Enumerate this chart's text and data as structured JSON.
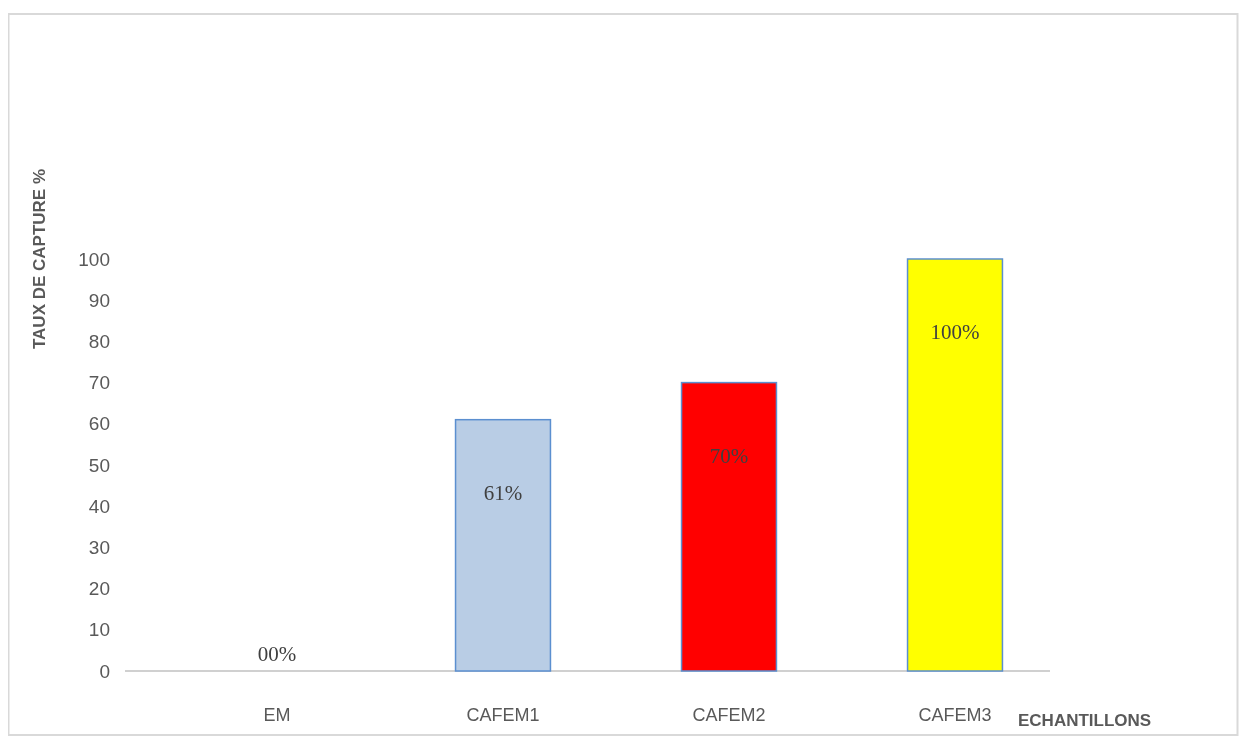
{
  "chart_data": {
    "type": "bar",
    "xlabel": "ECHANTILLONS",
    "ylabel": "TAUX DE CAPTURE %",
    "categories": [
      "EM",
      "CAFEM1",
      "CAFEM2",
      "CAFEM3"
    ],
    "values": [
      0,
      61,
      70,
      100
    ],
    "colors": [
      "#c4702f",
      "#b9cde5",
      "#ff0000",
      "#ffff00"
    ],
    "value_labels": [
      "00%",
      "61%",
      "70%",
      "100%"
    ],
    "ylim": [
      0,
      100
    ],
    "yticks": [
      0,
      10,
      20,
      30,
      40,
      50,
      60,
      70,
      80,
      90,
      100
    ]
  }
}
